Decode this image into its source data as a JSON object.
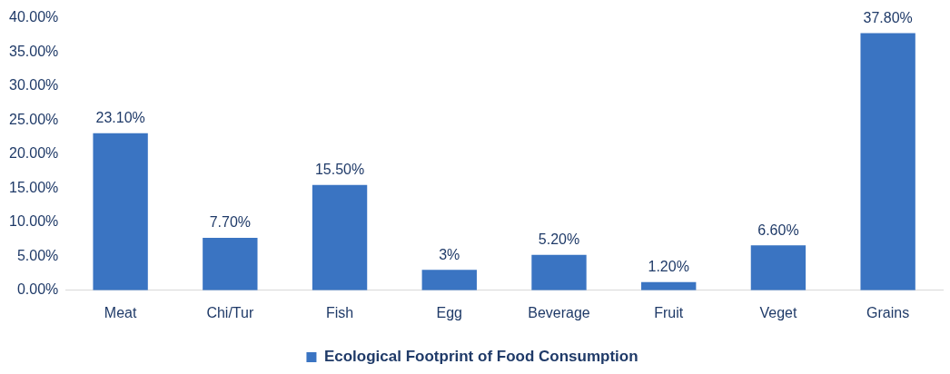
{
  "chart_data": {
    "type": "bar",
    "categories": [
      "Meat",
      "Chi/Tur",
      "Fish",
      "Egg",
      "Beverage",
      "Fruit",
      "Veget",
      "Grains"
    ],
    "series": [
      {
        "name": "Ecological Footprint of Food Consumption",
        "color": "#3a74c2",
        "values": [
          23.1,
          7.7,
          15.5,
          3,
          5.2,
          1.2,
          6.6,
          37.8
        ],
        "value_labels": [
          "23.10%",
          "7.70%",
          "15.50%",
          "3%",
          "5.20%",
          "1.20%",
          "6.60%",
          "37.80%"
        ]
      }
    ],
    "ylim": [
      0,
      40
    ],
    "yticks": [
      {
        "value": 0,
        "label": "0.00%"
      },
      {
        "value": 5,
        "label": "5.00%"
      },
      {
        "value": 10,
        "label": "10.00%"
      },
      {
        "value": 15,
        "label": "15.00%"
      },
      {
        "value": 20,
        "label": "20.00%"
      },
      {
        "value": 25,
        "label": "25.00%"
      },
      {
        "value": 30,
        "label": "30.00%"
      },
      {
        "value": 35,
        "label": "35.00%"
      },
      {
        "value": 40,
        "label": "40.00%"
      }
    ],
    "grid": false,
    "legend": "bottom"
  }
}
